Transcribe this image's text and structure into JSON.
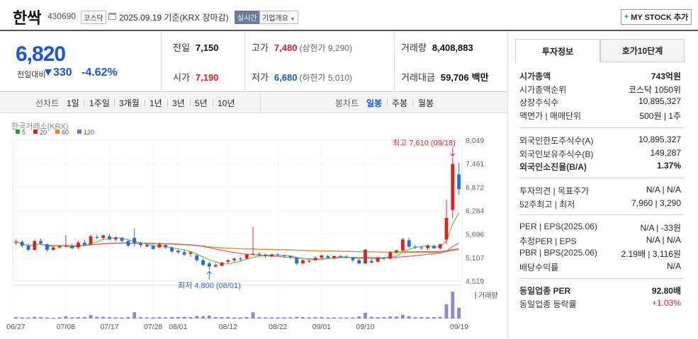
{
  "header": {
    "name": "한싹",
    "code": "430690",
    "market": "코스닥",
    "date": "2025.09.19",
    "basis": "기준(KRX 장마감)",
    "realtime": "실시간",
    "company_info": "기업개요",
    "mystock": "MY STOCK 추가"
  },
  "price": {
    "current": "6,820",
    "change_label": "전일대비",
    "change_amount": "330",
    "change_pct": "-4.62%"
  },
  "summary": {
    "prev_label": "전일",
    "prev_value": "7,150",
    "high_label": "고가",
    "high_value": "7,480",
    "high_sub": "(상한가 9,290)",
    "volume_label": "거래량",
    "volume_value": "8,408,883",
    "open_label": "시가",
    "open_value": "7,190",
    "low_label": "저가",
    "low_value": "6,680",
    "low_sub": "(하한가 5,010)",
    "amount_label": "거래대금",
    "amount_value": "59,706",
    "amount_unit": "백만"
  },
  "period_bar": {
    "line_label": "선차트",
    "periods": [
      "1일",
      "1주일",
      "3개월",
      "1년",
      "3년",
      "5년",
      "10년"
    ],
    "candle_label": "봉차트",
    "candle_periods": [
      "일봉",
      "주봉",
      "월봉"
    ],
    "active_candle": "일봉"
  },
  "chart_data": {
    "type": "candlestick",
    "source": "한국거래소(KRX)",
    "legend": [
      {
        "name": "5",
        "color": "#2ca02c"
      },
      {
        "name": "20",
        "color": "#d62728"
      },
      {
        "name": "60",
        "color": "#ff7f0e"
      },
      {
        "name": "120",
        "color": "#9467bd"
      }
    ],
    "y_ticks": [
      "8,049",
      "7,461",
      "6,872",
      "6,284",
      "5,696",
      "5,107",
      "4,519"
    ],
    "ylim": [
      4519,
      8049
    ],
    "x_ticks": [
      "06/27",
      "07/08",
      "07/17",
      "07/28",
      "08/01",
      "08/12",
      "08/22",
      "09/01",
      "09/10",
      "09/19"
    ],
    "volume_label": "거래량",
    "high_annotation": "최고 7,610 (09/18)",
    "low_annotation": "최저 4,800 (08/01)",
    "candles": [
      [
        5480,
        5560,
        5420,
        5500
      ],
      [
        5500,
        5540,
        5360,
        5400
      ],
      [
        5400,
        5460,
        5260,
        5300
      ],
      [
        5300,
        5560,
        5280,
        5520
      ],
      [
        5520,
        5580,
        5420,
        5460
      ],
      [
        5440,
        5460,
        5260,
        5300
      ],
      [
        5300,
        5380,
        5280,
        5360
      ],
      [
        5360,
        5420,
        5320,
        5400
      ],
      [
        5400,
        5660,
        5360,
        5400
      ],
      [
        5400,
        5460,
        5320,
        5340
      ],
      [
        5360,
        5520,
        5320,
        5480
      ],
      [
        5480,
        5560,
        5400,
        5420
      ],
      [
        5440,
        5680,
        5420,
        5640
      ],
      [
        5620,
        5680,
        5560,
        5600
      ],
      [
        5600,
        5680,
        5560,
        5660
      ],
      [
        5640,
        5700,
        5540,
        5560
      ],
      [
        5560,
        5640,
        5520,
        5600
      ],
      [
        5600,
        5620,
        5500,
        5520
      ],
      [
        5520,
        5560,
        5380,
        5400
      ],
      [
        5600,
        5840,
        5380,
        5460
      ],
      [
        5460,
        5500,
        5360,
        5420
      ],
      [
        5420,
        5480,
        5360,
        5380
      ],
      [
        5400,
        5460,
        5300,
        5320
      ],
      [
        5360,
        5480,
        5340,
        5440
      ],
      [
        5420,
        5440,
        5320,
        5360
      ],
      [
        5360,
        5380,
        5220,
        5260
      ],
      [
        5280,
        5300,
        5200,
        5240
      ],
      [
        5240,
        5300,
        5140,
        5180
      ],
      [
        5200,
        5260,
        5120,
        5240
      ],
      [
        5160,
        5200,
        5000,
        5040
      ],
      [
        5040,
        5080,
        4900,
        4920
      ],
      [
        4960,
        5000,
        4800,
        4880
      ],
      [
        4880,
        4960,
        4860,
        4920
      ],
      [
        4900,
        5000,
        4880,
        4980
      ],
      [
        5000,
        5060,
        4960,
        5040
      ],
      [
        5040,
        5100,
        5000,
        5080
      ],
      [
        5080,
        5120,
        5020,
        5060
      ],
      [
        5080,
        5200,
        5060,
        5180
      ],
      [
        5180,
        5880,
        5160,
        5200
      ],
      [
        5200,
        5240,
        5140,
        5180
      ],
      [
        5180,
        5200,
        5100,
        5140
      ],
      [
        5140,
        5200,
        5120,
        5180
      ],
      [
        5180,
        5220,
        5140,
        5160
      ],
      [
        5160,
        5180,
        5100,
        5140
      ],
      [
        5140,
        5160,
        5080,
        5120
      ],
      [
        5100,
        5120,
        4920,
        4960
      ],
      [
        4960,
        5060,
        4940,
        5040
      ],
      [
        5000,
        5060,
        4980,
        5020
      ],
      [
        5040,
        5140,
        5020,
        5100
      ],
      [
        5100,
        5180,
        5080,
        5160
      ],
      [
        5140,
        5180,
        5080,
        5100
      ],
      [
        5100,
        5160,
        5060,
        5140
      ],
      [
        5140,
        5180,
        5100,
        5120
      ],
      [
        5120,
        5160,
        5080,
        5100
      ],
      [
        5100,
        5120,
        5000,
        5040
      ],
      [
        5040,
        5080,
        4940,
        4960
      ],
      [
        4960,
        5320,
        4940,
        5300
      ],
      [
        5020,
        5080,
        4960,
        4980
      ],
      [
        5000,
        5120,
        4980,
        5100
      ],
      [
        5100,
        5120,
        5040,
        5080
      ],
      [
        5080,
        5260,
        5060,
        5240
      ],
      [
        5240,
        5300,
        5200,
        5280
      ],
      [
        5280,
        5600,
        5260,
        5560
      ],
      [
        5540,
        5600,
        5340,
        5380
      ],
      [
        5380,
        5420,
        5320,
        5360
      ],
      [
        5360,
        5400,
        5300,
        5340
      ],
      [
        5340,
        5440,
        5300,
        5400
      ],
      [
        5400,
        5420,
        5320,
        5340
      ],
      [
        5340,
        5440,
        5300,
        5440
      ],
      [
        5560,
        6560,
        5440,
        6100
      ],
      [
        6300,
        7610,
        6100,
        7450
      ],
      [
        7190,
        7480,
        6680,
        6820
      ]
    ],
    "volumes": [
      0.05,
      0.04,
      0.04,
      0.06,
      0.05,
      0.04,
      0.03,
      0.04,
      0.08,
      0.04,
      0.05,
      0.05,
      0.12,
      0.06,
      0.06,
      0.05,
      0.04,
      0.04,
      0.05,
      0.22,
      0.05,
      0.04,
      0.04,
      0.05,
      0.04,
      0.05,
      0.05,
      0.06,
      0.05,
      0.09,
      0.08,
      0.1,
      0.05,
      0.05,
      0.05,
      0.04,
      0.04,
      0.05,
      0.22,
      0.05,
      0.04,
      0.04,
      0.04,
      0.04,
      0.04,
      0.06,
      0.05,
      0.04,
      0.05,
      0.05,
      0.04,
      0.04,
      0.04,
      0.04,
      0.04,
      0.07,
      0.2,
      0.06,
      0.05,
      0.05,
      0.07,
      0.07,
      0.13,
      0.08,
      0.05,
      0.05,
      0.05,
      0.05,
      0.06,
      0.5,
      0.95,
      0.38
    ]
  },
  "right_panel": {
    "tab_invest": "투자정보",
    "tab_hoga": "호가10단계",
    "rows1": [
      {
        "label": "시가총액",
        "value": "743억원"
      },
      {
        "label": "시가총액순위",
        "value": "코스닥 1050위"
      },
      {
        "label": "상장주식수",
        "value": "10,895,327"
      },
      {
        "label": "액면가 | 매매단위",
        "value": "500원 | 1주"
      }
    ],
    "rows2": [
      {
        "label": "외국인한도주식수(A)",
        "value": "10,895,327"
      },
      {
        "label": "외국인보유주식수(B)",
        "value": "149,287"
      },
      {
        "label": "외국인소진율(B/A)",
        "value": "1.37%"
      }
    ],
    "rows3": [
      {
        "label": "투자의견 | 목표주가",
        "value": "N/A | N/A"
      },
      {
        "label": "52주최고 | 최저",
        "value": "7,960 | 3,290"
      }
    ],
    "rows4": [
      {
        "label": "PER | EPS(2025.06)",
        "value": "N/A | -33원"
      },
      {
        "label": "추정PER | EPS",
        "value": "N/A | N/A"
      },
      {
        "label": "PBR | BPS(2025.06)",
        "value": "2.19배 | 3,116원"
      },
      {
        "label": "배당수익률",
        "value": "N/A"
      }
    ],
    "rows5": [
      {
        "label": "동일업종 PER",
        "value": "92.80배"
      },
      {
        "label": "동일업종 등락률",
        "value": "+1.03%"
      }
    ]
  }
}
